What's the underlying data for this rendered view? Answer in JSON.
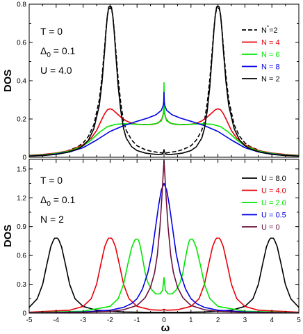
{
  "chart_data": [
    {
      "type": "line",
      "xlabel": "",
      "ylabel": "DOS",
      "xlim": [
        -5,
        5
      ],
      "ylim": [
        0,
        0.8
      ],
      "xticks": [
        "-5",
        "-4",
        "-3",
        "-2",
        "-1",
        "0",
        "1",
        "2",
        "3",
        "4",
        "5"
      ],
      "yticks": [
        "0",
        "0.2",
        "0.4",
        "0.6",
        "0.8"
      ],
      "annotations": [
        {
          "prefix": "T = 0",
          "sub": "",
          "suffix": ""
        },
        {
          "prefix": "Δ",
          "sub": "0",
          "suffix": " = 0.1"
        },
        {
          "prefix": "U = 4.0",
          "sub": "",
          "suffix": ""
        }
      ],
      "legend": "top-right",
      "series": [
        {
          "name": "N*=2",
          "label_main": "N",
          "label_sup": "*",
          "label_rest": "=2",
          "color": "#000000",
          "dash": true,
          "x": [
            -5,
            -4.5,
            -4,
            -3.6,
            -3.2,
            -3,
            -2.8,
            -2.6,
            -2.4,
            -2.3,
            -2.2,
            -2.15,
            -2.1,
            -2.05,
            -2,
            -1.95,
            -1.9,
            -1.85,
            -1.8,
            -1.7,
            -1.6,
            -1.5,
            -1.4,
            -1.2,
            -1,
            -0.7,
            -0.5,
            -0.2,
            -0.08,
            0,
            0.08,
            0.2,
            0.5,
            0.7,
            1,
            1.2,
            1.4,
            1.5,
            1.6,
            1.7,
            1.8,
            1.85,
            1.9,
            1.95,
            2,
            2.05,
            2.1,
            2.15,
            2.2,
            2.3,
            2.4,
            2.6,
            2.8,
            3,
            3.2,
            3.6,
            4,
            4.5,
            5
          ],
          "y": [
            0.008,
            0.012,
            0.02,
            0.032,
            0.055,
            0.075,
            0.11,
            0.17,
            0.3,
            0.42,
            0.58,
            0.67,
            0.74,
            0.775,
            0.78,
            0.775,
            0.74,
            0.67,
            0.58,
            0.41,
            0.28,
            0.19,
            0.14,
            0.09,
            0.06,
            0.04,
            0.032,
            0.025,
            0.023,
            0.022,
            0.023,
            0.025,
            0.032,
            0.04,
            0.06,
            0.09,
            0.14,
            0.19,
            0.28,
            0.41,
            0.58,
            0.67,
            0.74,
            0.775,
            0.78,
            0.775,
            0.74,
            0.67,
            0.58,
            0.42,
            0.3,
            0.17,
            0.11,
            0.075,
            0.055,
            0.032,
            0.02,
            0.012,
            0.008
          ]
        },
        {
          "name": "N = 4",
          "label_main": "N = 4",
          "label_sup": "",
          "label_rest": "",
          "color": "#e8000b",
          "dash": false,
          "x": [
            -5,
            -4.5,
            -4,
            -3.5,
            -3,
            -2.7,
            -2.5,
            -2.3,
            -2.2,
            -2.1,
            -2,
            -1.9,
            -1.8,
            -1.6,
            -1.4,
            -1.2,
            -1,
            -0.7,
            -0.4,
            -0.2,
            -0.08,
            -0.02,
            0,
            0.02,
            0.08,
            0.2,
            0.4,
            0.7,
            1,
            1.2,
            1.4,
            1.6,
            1.8,
            1.9,
            2,
            2.1,
            2.2,
            2.3,
            2.5,
            2.7,
            3,
            3.5,
            4,
            4.5,
            5
          ],
          "y": [
            0.01,
            0.015,
            0.022,
            0.035,
            0.065,
            0.1,
            0.14,
            0.2,
            0.228,
            0.248,
            0.253,
            0.248,
            0.235,
            0.21,
            0.19,
            0.178,
            0.172,
            0.17,
            0.172,
            0.18,
            0.2,
            0.23,
            0.25,
            0.23,
            0.2,
            0.18,
            0.172,
            0.17,
            0.172,
            0.178,
            0.19,
            0.21,
            0.235,
            0.248,
            0.253,
            0.248,
            0.228,
            0.2,
            0.14,
            0.1,
            0.065,
            0.035,
            0.022,
            0.015,
            0.01
          ]
        },
        {
          "name": "N = 6",
          "label_main": "N = 6",
          "label_sup": "",
          "label_rest": "",
          "color": "#00e600",
          "dash": false,
          "x": [
            -5,
            -4.5,
            -4,
            -3.5,
            -3,
            -2.7,
            -2.4,
            -2.1,
            -1.8,
            -1.5,
            -1.2,
            -0.9,
            -0.6,
            -0.3,
            -0.1,
            -0.03,
            -0.01,
            0,
            0.01,
            0.03,
            0.1,
            0.3,
            0.6,
            0.9,
            1.2,
            1.5,
            1.8,
            2.1,
            2.4,
            2.7,
            3,
            3.5,
            4,
            4.5,
            5
          ],
          "y": [
            0.008,
            0.012,
            0.02,
            0.032,
            0.06,
            0.09,
            0.13,
            0.16,
            0.172,
            0.175,
            0.174,
            0.172,
            0.171,
            0.175,
            0.19,
            0.22,
            0.26,
            0.39,
            0.26,
            0.22,
            0.19,
            0.175,
            0.171,
            0.172,
            0.174,
            0.175,
            0.172,
            0.16,
            0.13,
            0.09,
            0.06,
            0.032,
            0.02,
            0.012,
            0.008
          ]
        },
        {
          "name": "N = 8",
          "label_main": "N = 8",
          "label_sup": "",
          "label_rest": "",
          "color": "#0000e6",
          "dash": false,
          "x": [
            -5,
            -4.5,
            -4,
            -3.5,
            -3,
            -2.5,
            -2,
            -1.5,
            -1,
            -0.6,
            -0.3,
            -0.1,
            -0.03,
            -0.01,
            0,
            0.01,
            0.03,
            0.1,
            0.3,
            0.6,
            1,
            1.5,
            2,
            2.5,
            3,
            3.5,
            4,
            4.5,
            5
          ],
          "y": [
            0.006,
            0.01,
            0.017,
            0.028,
            0.05,
            0.09,
            0.135,
            0.165,
            0.188,
            0.205,
            0.222,
            0.245,
            0.27,
            0.29,
            0.34,
            0.29,
            0.27,
            0.245,
            0.222,
            0.205,
            0.188,
            0.165,
            0.135,
            0.09,
            0.05,
            0.028,
            0.017,
            0.01,
            0.006
          ]
        },
        {
          "name": "N = 2",
          "label_main": "N = 2",
          "label_sup": "",
          "label_rest": "",
          "color": "#000000",
          "dash": false,
          "x": [
            -5,
            -4.5,
            -4,
            -3.6,
            -3.2,
            -3,
            -2.8,
            -2.6,
            -2.4,
            -2.3,
            -2.2,
            -2.15,
            -2.1,
            -2.05,
            -2,
            -1.95,
            -1.9,
            -1.85,
            -1.8,
            -1.7,
            -1.6,
            -1.5,
            -1.4,
            -1.2,
            -1,
            -0.7,
            -0.5,
            -0.2,
            -0.06,
            -0.02,
            0,
            0.02,
            0.06,
            0.2,
            0.5,
            0.7,
            1,
            1.2,
            1.4,
            1.5,
            1.6,
            1.7,
            1.8,
            1.85,
            1.9,
            1.95,
            2,
            2.05,
            2.1,
            2.15,
            2.2,
            2.3,
            2.4,
            2.6,
            2.8,
            3,
            3.2,
            3.6,
            4,
            4.5,
            5
          ],
          "y": [
            0.006,
            0.009,
            0.015,
            0.025,
            0.043,
            0.06,
            0.09,
            0.15,
            0.27,
            0.39,
            0.56,
            0.66,
            0.74,
            0.785,
            0.79,
            0.785,
            0.74,
            0.66,
            0.56,
            0.37,
            0.24,
            0.15,
            0.1,
            0.055,
            0.035,
            0.022,
            0.018,
            0.014,
            0.016,
            0.028,
            0.04,
            0.028,
            0.016,
            0.014,
            0.018,
            0.022,
            0.035,
            0.055,
            0.1,
            0.15,
            0.24,
            0.37,
            0.56,
            0.66,
            0.74,
            0.785,
            0.79,
            0.785,
            0.74,
            0.66,
            0.56,
            0.39,
            0.27,
            0.15,
            0.09,
            0.06,
            0.043,
            0.025,
            0.015,
            0.009,
            0.006
          ]
        }
      ]
    },
    {
      "type": "line",
      "xlabel": "ω",
      "ylabel": "DOS",
      "xlim": [
        -5,
        5
      ],
      "ylim": [
        0,
        1.6
      ],
      "xticks": [
        "-5",
        "-4",
        "-3",
        "-2",
        "-1",
        "0",
        "1",
        "2",
        "3",
        "4",
        "5"
      ],
      "yticks": [
        "0",
        "0.3",
        "0.6",
        "0.9",
        "1.2",
        "1.5"
      ],
      "annotations": [
        {
          "prefix": "T = 0",
          "sub": "",
          "suffix": ""
        },
        {
          "prefix": "Δ",
          "sub": "0",
          "suffix": " = 0.1"
        },
        {
          "prefix": "N = 2",
          "sub": "",
          "suffix": ""
        }
      ],
      "legend": "top-right",
      "series": [
        {
          "name": "U = 8.0",
          "color": "#000000",
          "dash": false,
          "x": [
            -5,
            -4.7,
            -4.5,
            -4.35,
            -4.2,
            -4.1,
            -4.05,
            -4,
            -3.95,
            -3.9,
            -3.8,
            -3.65,
            -3.5,
            -3.3,
            -3,
            -2.5,
            -1.5,
            -0.5,
            -0.1,
            0,
            0.1,
            0.5,
            1.5,
            2.5,
            3,
            3.3,
            3.5,
            3.65,
            3.8,
            3.9,
            3.95,
            4,
            4.05,
            4.1,
            4.2,
            4.35,
            4.5,
            4.7,
            5
          ],
          "y": [
            0.06,
            0.15,
            0.3,
            0.5,
            0.69,
            0.76,
            0.78,
            0.78,
            0.78,
            0.76,
            0.69,
            0.5,
            0.3,
            0.15,
            0.07,
            0.03,
            0.012,
            0.008,
            0.008,
            0.01,
            0.008,
            0.008,
            0.012,
            0.03,
            0.07,
            0.15,
            0.3,
            0.5,
            0.69,
            0.76,
            0.78,
            0.78,
            0.78,
            0.76,
            0.69,
            0.5,
            0.3,
            0.15,
            0.06
          ]
        },
        {
          "name": "U = 4.0",
          "color": "#e8000b",
          "dash": false,
          "x": [
            -5,
            -3.5,
            -3,
            -2.7,
            -2.5,
            -2.35,
            -2.2,
            -2.1,
            -2.05,
            -2,
            -1.95,
            -1.9,
            -1.8,
            -1.65,
            -1.5,
            -1.3,
            -1,
            -0.5,
            -0.1,
            0,
            0.1,
            0.5,
            1,
            1.3,
            1.5,
            1.65,
            1.8,
            1.9,
            1.95,
            2,
            2.05,
            2.1,
            2.2,
            2.35,
            2.5,
            2.7,
            3,
            3.5,
            5
          ],
          "y": [
            0.01,
            0.03,
            0.07,
            0.15,
            0.3,
            0.5,
            0.69,
            0.76,
            0.78,
            0.78,
            0.78,
            0.76,
            0.69,
            0.5,
            0.3,
            0.15,
            0.07,
            0.035,
            0.03,
            0.04,
            0.03,
            0.035,
            0.07,
            0.15,
            0.3,
            0.5,
            0.69,
            0.76,
            0.78,
            0.78,
            0.78,
            0.76,
            0.69,
            0.5,
            0.3,
            0.15,
            0.07,
            0.03,
            0.01
          ]
        },
        {
          "name": "U = 2.0",
          "color": "#00e600",
          "dash": false,
          "x": [
            -5,
            -3,
            -2,
            -1.7,
            -1.5,
            -1.35,
            -1.2,
            -1.1,
            -1.05,
            -1,
            -0.95,
            -0.9,
            -0.8,
            -0.7,
            -0.6,
            -0.45,
            -0.3,
            -0.15,
            -0.05,
            0,
            0.05,
            0.15,
            0.3,
            0.45,
            0.6,
            0.7,
            0.8,
            0.9,
            0.95,
            1,
            1.05,
            1.1,
            1.2,
            1.35,
            1.5,
            1.7,
            2,
            3,
            5
          ],
          "y": [
            0.005,
            0.02,
            0.07,
            0.15,
            0.3,
            0.5,
            0.68,
            0.75,
            0.77,
            0.77,
            0.76,
            0.72,
            0.58,
            0.42,
            0.32,
            0.24,
            0.2,
            0.2,
            0.24,
            0.37,
            0.24,
            0.2,
            0.2,
            0.24,
            0.32,
            0.42,
            0.58,
            0.72,
            0.76,
            0.77,
            0.77,
            0.75,
            0.68,
            0.5,
            0.3,
            0.15,
            0.07,
            0.02,
            0.005
          ]
        },
        {
          "name": "U = 0.5",
          "color": "#0000e6",
          "dash": false,
          "x": [
            -5,
            -3,
            -2,
            -1.5,
            -1.2,
            -1,
            -0.8,
            -0.6,
            -0.45,
            -0.3,
            -0.2,
            -0.1,
            0,
            0.1,
            0.2,
            0.3,
            0.45,
            0.6,
            0.8,
            1,
            1.2,
            1.5,
            2,
            3,
            5
          ],
          "y": [
            0.003,
            0.012,
            0.03,
            0.06,
            0.1,
            0.15,
            0.25,
            0.42,
            0.62,
            0.92,
            1.12,
            1.28,
            1.35,
            1.28,
            1.12,
            0.92,
            0.62,
            0.42,
            0.25,
            0.15,
            0.1,
            0.06,
            0.03,
            0.012,
            0.003
          ]
        },
        {
          "name": "U = 0",
          "color": "#6b0f3a",
          "dash": false,
          "x": [
            -5,
            -3,
            -2,
            -1.5,
            -1,
            -0.7,
            -0.5,
            -0.35,
            -0.25,
            -0.15,
            -0.08,
            -0.03,
            0,
            0.03,
            0.08,
            0.15,
            0.25,
            0.35,
            0.5,
            0.7,
            1,
            1.5,
            2,
            3,
            5
          ],
          "y": [
            0.002,
            0.008,
            0.018,
            0.035,
            0.08,
            0.16,
            0.27,
            0.42,
            0.6,
            0.9,
            1.2,
            1.45,
            1.59,
            1.45,
            1.2,
            0.9,
            0.6,
            0.42,
            0.27,
            0.16,
            0.08,
            0.035,
            0.018,
            0.008,
            0.002
          ]
        }
      ]
    }
  ]
}
